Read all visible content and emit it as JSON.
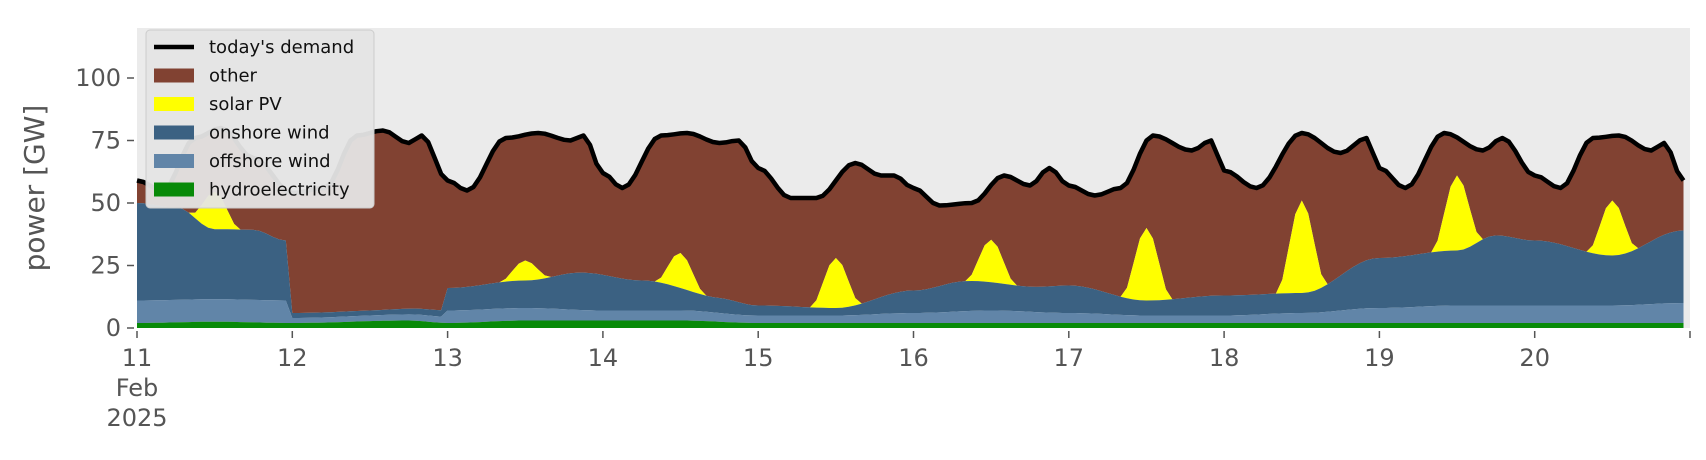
{
  "chart_data": {
    "type": "area",
    "ylabel": "power [GW]",
    "ylim": [
      0,
      120
    ],
    "yticks": [
      0,
      25,
      50,
      75,
      100
    ],
    "xlim": [
      "2025-02-11T00:00",
      "2025-02-20T23:00"
    ],
    "x_month_label": "Feb",
    "x_year_label": "2025",
    "xticks": [
      {
        "date": "2025-02-11",
        "label": "11"
      },
      {
        "date": "2025-02-12",
        "label": "12"
      },
      {
        "date": "2025-02-13",
        "label": "13"
      },
      {
        "date": "2025-02-14",
        "label": "14"
      },
      {
        "date": "2025-02-15",
        "label": "15"
      },
      {
        "date": "2025-02-16",
        "label": "16"
      },
      {
        "date": "2025-02-17",
        "label": "17"
      },
      {
        "date": "2025-02-18",
        "label": "18"
      },
      {
        "date": "2025-02-19",
        "label": "19"
      },
      {
        "date": "2025-02-20",
        "label": "20"
      },
      {
        "date": "2025-02-21",
        "label": ""
      }
    ],
    "grid": false,
    "legend": {
      "position": "upper-left",
      "entries": [
        {
          "key": "demand",
          "label": "today's demand",
          "kind": "line"
        },
        {
          "key": "other",
          "label": "other",
          "kind": "patch"
        },
        {
          "key": "solar",
          "label": "solar PV",
          "kind": "patch"
        },
        {
          "key": "onshore",
          "label": "onshore wind",
          "kind": "patch"
        },
        {
          "key": "offshore",
          "label": "offshore wind",
          "kind": "patch"
        },
        {
          "key": "hydro",
          "label": "hydroelectricity",
          "kind": "patch"
        }
      ]
    },
    "colors": {
      "background": "#ebebeb",
      "demand": "#000000",
      "other": "#814232",
      "solar": "#ffff00",
      "onshore": "#3b6182",
      "offshore": "#6185a8",
      "hydro": "#088a08"
    },
    "series": [
      {
        "key": "hydro",
        "name": "hydroelectricity",
        "points": [
          [
            "2025-02-11T00:00",
            2
          ],
          [
            "2025-02-11T12:00",
            2.5
          ],
          [
            "2025-02-12T00:00",
            2
          ],
          [
            "2025-02-12T18:00",
            3
          ],
          [
            "2025-02-13T00:00",
            2
          ],
          [
            "2025-02-13T12:00",
            3
          ],
          [
            "2025-02-14T12:00",
            3
          ],
          [
            "2025-02-15T00:00",
            2
          ],
          [
            "2025-02-16T00:00",
            2
          ],
          [
            "2025-02-17T00:00",
            2
          ],
          [
            "2025-02-18T00:00",
            2
          ],
          [
            "2025-02-19T00:00",
            2
          ],
          [
            "2025-02-20T00:00",
            2
          ],
          [
            "2025-02-20T23:00",
            2
          ]
        ]
      },
      {
        "key": "offshore",
        "name": "offshore wind",
        "points": [
          [
            "2025-02-11T00:00",
            9
          ],
          [
            "2025-02-11T12:00",
            9
          ],
          [
            "2025-02-11T23:00",
            9
          ],
          [
            "2025-02-12T00:00",
            2
          ],
          [
            "2025-02-12T23:00",
            2.5
          ],
          [
            "2025-02-13T00:00",
            5
          ],
          [
            "2025-02-13T12:00",
            5
          ],
          [
            "2025-02-14T00:00",
            4
          ],
          [
            "2025-02-14T12:00",
            4
          ],
          [
            "2025-02-15T00:00",
            3
          ],
          [
            "2025-02-15T12:00",
            3
          ],
          [
            "2025-02-16T00:00",
            4
          ],
          [
            "2025-02-16T12:00",
            5
          ],
          [
            "2025-02-17T00:00",
            4
          ],
          [
            "2025-02-17T12:00",
            3
          ],
          [
            "2025-02-18T00:00",
            3
          ],
          [
            "2025-02-18T12:00",
            4
          ],
          [
            "2025-02-19T00:00",
            6
          ],
          [
            "2025-02-19T12:00",
            7
          ],
          [
            "2025-02-20T00:00",
            7
          ],
          [
            "2025-02-20T12:00",
            7
          ],
          [
            "2025-02-20T23:00",
            8
          ]
        ]
      },
      {
        "key": "onshore",
        "name": "onshore wind",
        "points": [
          [
            "2025-02-11T00:00",
            39
          ],
          [
            "2025-02-11T06:00",
            37
          ],
          [
            "2025-02-11T12:00",
            28
          ],
          [
            "2025-02-11T18:00",
            28
          ],
          [
            "2025-02-11T23:00",
            24
          ],
          [
            "2025-02-12T00:00",
            2
          ],
          [
            "2025-02-12T12:00",
            2
          ],
          [
            "2025-02-12T23:00",
            2.5
          ],
          [
            "2025-02-13T00:00",
            9
          ],
          [
            "2025-02-13T12:00",
            11
          ],
          [
            "2025-02-13T21:00",
            15
          ],
          [
            "2025-02-14T06:00",
            12
          ],
          [
            "2025-02-14T18:00",
            6
          ],
          [
            "2025-02-15T00:00",
            4
          ],
          [
            "2025-02-15T12:00",
            3
          ],
          [
            "2025-02-16T00:00",
            9
          ],
          [
            "2025-02-16T08:00",
            12
          ],
          [
            "2025-02-16T18:00",
            10
          ],
          [
            "2025-02-17T00:00",
            11
          ],
          [
            "2025-02-17T12:00",
            6
          ],
          [
            "2025-02-18T00:00",
            8
          ],
          [
            "2025-02-18T12:00",
            8
          ],
          [
            "2025-02-19T00:00",
            20
          ],
          [
            "2025-02-19T12:00",
            22
          ],
          [
            "2025-02-19T18:00",
            28
          ],
          [
            "2025-02-20T00:00",
            26
          ],
          [
            "2025-02-20T12:00",
            20
          ],
          [
            "2025-02-20T23:00",
            29
          ]
        ]
      },
      {
        "key": "solar",
        "name": "solar PV",
        "peaks": [
          {
            "day": "2025-02-11",
            "peak": 15
          },
          {
            "day": "2025-02-12",
            "peak": 0
          },
          {
            "day": "2025-02-13",
            "peak": 8
          },
          {
            "day": "2025-02-14",
            "peak": 14
          },
          {
            "day": "2025-02-15",
            "peak": 20
          },
          {
            "day": "2025-02-16",
            "peak": 17
          },
          {
            "day": "2025-02-17",
            "peak": 29
          },
          {
            "day": "2025-02-18",
            "peak": 37
          },
          {
            "day": "2025-02-19",
            "peak": 30
          },
          {
            "day": "2025-02-20",
            "peak": 22
          }
        ]
      },
      {
        "key": "other",
        "name": "other",
        "note": "fills from stack top up to demand"
      },
      {
        "key": "demand",
        "name": "today's demand",
        "points": [
          [
            "2025-02-11T00:00",
            59
          ],
          [
            "2025-02-11T04:00",
            55
          ],
          [
            "2025-02-11T09:00",
            76
          ],
          [
            "2025-02-11T13:00",
            80
          ],
          [
            "2025-02-11T18:00",
            68
          ],
          [
            "2025-02-12T00:00",
            54
          ],
          [
            "2025-02-12T05:00",
            56
          ],
          [
            "2025-02-12T10:00",
            77
          ],
          [
            "2025-02-12T14:00",
            79
          ],
          [
            "2025-02-12T18:00",
            74
          ],
          [
            "2025-02-12T20:00",
            77
          ],
          [
            "2025-02-13T00:00",
            59
          ],
          [
            "2025-02-13T03:00",
            55
          ],
          [
            "2025-02-13T09:00",
            76
          ],
          [
            "2025-02-13T14:00",
            78
          ],
          [
            "2025-02-13T19:00",
            75
          ],
          [
            "2025-02-13T21:00",
            77
          ],
          [
            "2025-02-14T00:00",
            62
          ],
          [
            "2025-02-14T03:00",
            56
          ],
          [
            "2025-02-14T09:00",
            77
          ],
          [
            "2025-02-14T13:00",
            78
          ],
          [
            "2025-02-14T18:00",
            74
          ],
          [
            "2025-02-14T21:00",
            75
          ],
          [
            "2025-02-15T00:00",
            64
          ],
          [
            "2025-02-15T05:00",
            52
          ],
          [
            "2025-02-15T09:00",
            52
          ],
          [
            "2025-02-15T15:00",
            66
          ],
          [
            "2025-02-15T19:00",
            61
          ],
          [
            "2025-02-15T21:00",
            61
          ],
          [
            "2025-02-16T00:00",
            56
          ],
          [
            "2025-02-16T04:00",
            49
          ],
          [
            "2025-02-16T09:00",
            50
          ],
          [
            "2025-02-16T14:00",
            61
          ],
          [
            "2025-02-16T18:00",
            57
          ],
          [
            "2025-02-16T21:00",
            64
          ],
          [
            "2025-02-17T00:00",
            57
          ],
          [
            "2025-02-17T04:00",
            53
          ],
          [
            "2025-02-17T08:00",
            56
          ],
          [
            "2025-02-17T13:00",
            77
          ],
          [
            "2025-02-17T19:00",
            71
          ],
          [
            "2025-02-17T22:00",
            75
          ],
          [
            "2025-02-18T00:00",
            63
          ],
          [
            "2025-02-18T05:00",
            56
          ],
          [
            "2025-02-18T12:00",
            78
          ],
          [
            "2025-02-18T18:00",
            70
          ],
          [
            "2025-02-18T22:00",
            76
          ],
          [
            "2025-02-19T00:00",
            64
          ],
          [
            "2025-02-19T04:00",
            56
          ],
          [
            "2025-02-19T10:00",
            78
          ],
          [
            "2025-02-19T16:00",
            71
          ],
          [
            "2025-02-19T19:00",
            76
          ],
          [
            "2025-02-20T00:00",
            61
          ],
          [
            "2025-02-20T04:00",
            56
          ],
          [
            "2025-02-20T09:00",
            76
          ],
          [
            "2025-02-20T13:00",
            77
          ],
          [
            "2025-02-20T18:00",
            71
          ],
          [
            "2025-02-20T20:00",
            74
          ],
          [
            "2025-02-20T23:00",
            59
          ]
        ]
      }
    ]
  }
}
